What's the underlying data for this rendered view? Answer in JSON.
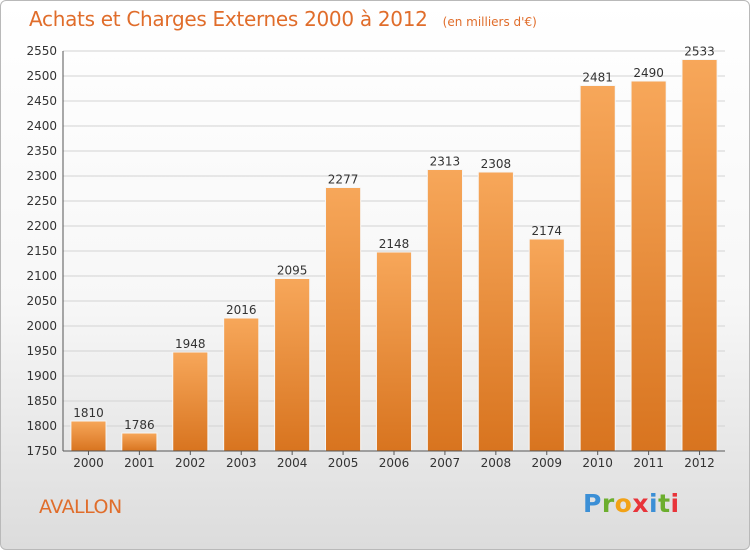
{
  "header": {
    "title": "Achats et Charges Externes 2000 à 2012",
    "subtitle": "(en milliers d'€)"
  },
  "footer": {
    "place": "AVALLON",
    "logo": "Proxiti"
  },
  "colors": {
    "accent": "#e06d2b",
    "bar_top": "#f7a75a",
    "bar_bottom": "#d8741f"
  },
  "chart_data": {
    "type": "bar",
    "title": "Achats et Charges Externes 2000 à 2012",
    "subtitle": "(en milliers d'€)",
    "xlabel": "",
    "ylabel": "",
    "categories": [
      "2000",
      "2001",
      "2002",
      "2003",
      "2004",
      "2005",
      "2006",
      "2007",
      "2008",
      "2009",
      "2010",
      "2011",
      "2012"
    ],
    "values": [
      1810,
      1786,
      1948,
      2016,
      2095,
      2277,
      2148,
      2313,
      2308,
      2174,
      2481,
      2490,
      2533
    ],
    "ylim": [
      1750,
      2550
    ],
    "yticks": [
      1750,
      1800,
      1850,
      1900,
      1950,
      2000,
      2050,
      2100,
      2150,
      2200,
      2250,
      2300,
      2350,
      2400,
      2450,
      2500,
      2550
    ],
    "grid": true,
    "data_labels": true
  }
}
